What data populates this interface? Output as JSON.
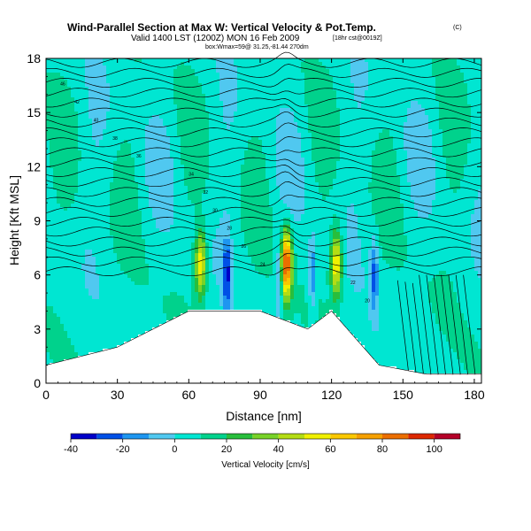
{
  "chart_data": {
    "type": "heatmap",
    "title": "Wind-Parallel Section at Max W: Vertical Velocity & Pot.Temp.",
    "title_note": "(C)",
    "subtitle": "Valid 1400 LST (1200Z) MON 16 Feb 2009",
    "subtitle_note": "[18hr cst@0019Z]",
    "location_note": "box:Wmax=59@ 31.25,-81.44 270dm",
    "xlabel": "Distance [nm]",
    "ylabel": "Height [Kft MSL]",
    "xlim": [
      0,
      183
    ],
    "ylim": [
      0,
      18
    ],
    "xticks": [
      0,
      30,
      60,
      90,
      120,
      150,
      180
    ],
    "yticks": [
      0,
      3,
      6,
      9,
      12,
      15,
      18
    ],
    "colorbar": {
      "label": "Vertical Velocity [cm/s]",
      "min": -40,
      "max": 110,
      "step": 10,
      "ticks": [
        -40,
        -20,
        0,
        20,
        40,
        60,
        80,
        100
      ],
      "colors": [
        "#0000c8",
        "#0050e6",
        "#1e96f0",
        "#50c8f0",
        "#00e6d2",
        "#00d28c",
        "#28be3c",
        "#78d228",
        "#b4dc14",
        "#f0f000",
        "#fac800",
        "#f5a000",
        "#eb6e00",
        "#dc2800",
        "#b40028"
      ]
    },
    "updraft_cores": [
      {
        "x": 65,
        "peak": 58
      },
      {
        "x": 101,
        "peak": 95
      },
      {
        "x": 122,
        "peak": 62
      }
    ],
    "downdraft_cores": [
      {
        "x": 76,
        "min": -30
      },
      {
        "x": 98,
        "min": -22
      },
      {
        "x": 112,
        "min": -20
      },
      {
        "x": 138,
        "min": -22
      }
    ],
    "terrain_top_kft": [
      {
        "x": 0,
        "h": 1
      },
      {
        "x": 30,
        "h": 2
      },
      {
        "x": 60,
        "h": 4
      },
      {
        "x": 90,
        "h": 4
      },
      {
        "x": 110,
        "h": 3
      },
      {
        "x": 120,
        "h": 4
      },
      {
        "x": 140,
        "h": 1
      },
      {
        "x": 160,
        "h": 0.5
      },
      {
        "x": 183,
        "h": 0.5
      }
    ],
    "contour_labels": [
      "46",
      "42",
      "40",
      "38",
      "36",
      "34",
      "32",
      "30",
      "28",
      "26",
      "24",
      "22",
      "20"
    ]
  }
}
